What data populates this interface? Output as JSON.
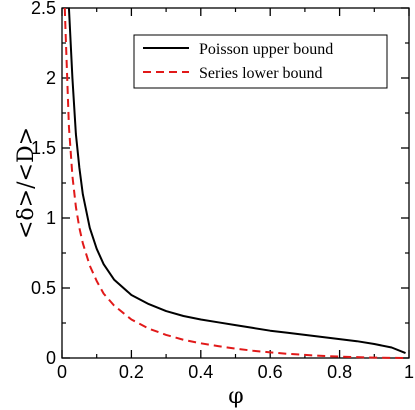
{
  "chart_data": {
    "type": "line",
    "title": "",
    "xlabel": "φ",
    "ylabel": "<δ>/<D>",
    "xlim": [
      0,
      1
    ],
    "ylim": [
      0,
      2.5
    ],
    "x_ticks": [
      "0",
      "0.2",
      "0.4",
      "0.6",
      "0.8",
      "1"
    ],
    "y_ticks": [
      "0",
      "0.5",
      "1",
      "1.5",
      "2",
      "2.5"
    ],
    "grid": false,
    "legend_position": "top-right",
    "series": [
      {
        "name": "Poisson upper bound",
        "color": "#000000",
        "dash": "solid",
        "x": [
          0.02,
          0.03,
          0.04,
          0.05,
          0.06,
          0.08,
          0.1,
          0.12,
          0.15,
          0.2,
          0.25,
          0.3,
          0.35,
          0.4,
          0.45,
          0.5,
          0.55,
          0.6,
          0.65,
          0.7,
          0.75,
          0.8,
          0.85,
          0.9,
          0.95,
          0.99
        ],
        "y": [
          2.5,
          2.0,
          1.6,
          1.36,
          1.17,
          0.93,
          0.78,
          0.67,
          0.56,
          0.45,
          0.385,
          0.335,
          0.3,
          0.275,
          0.255,
          0.235,
          0.215,
          0.195,
          0.18,
          0.165,
          0.15,
          0.135,
          0.12,
          0.1,
          0.075,
          0.035
        ]
      },
      {
        "name": "Series lower bound",
        "color": "#e11919",
        "dash": "dashed",
        "x": [
          0.008,
          0.01,
          0.02,
          0.03,
          0.04,
          0.05,
          0.06,
          0.08,
          0.1,
          0.12,
          0.15,
          0.2,
          0.25,
          0.3,
          0.35,
          0.4,
          0.45,
          0.5,
          0.55,
          0.6,
          0.65,
          0.7,
          0.75,
          0.8,
          0.85,
          0.9,
          0.95,
          0.99
        ],
        "y": [
          2.5,
          2.35,
          1.65,
          1.3,
          1.08,
          0.93,
          0.82,
          0.66,
          0.55,
          0.46,
          0.375,
          0.275,
          0.21,
          0.165,
          0.13,
          0.105,
          0.085,
          0.067,
          0.052,
          0.04,
          0.03,
          0.022,
          0.015,
          0.01,
          0.006,
          0.003,
          0.001,
          0.0
        ]
      }
    ]
  }
}
